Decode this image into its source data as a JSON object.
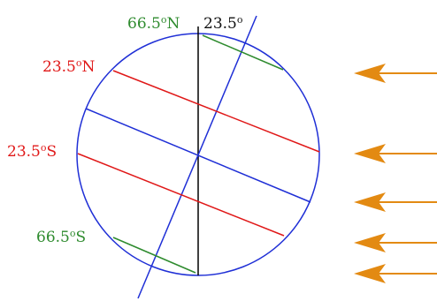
{
  "labels": {
    "arctic": "66.5",
    "arctic_suffix": "N",
    "tilt": "23.5",
    "tropic_cancer": "23.5",
    "tropic_cancer_suffix": "N",
    "tropic_capricorn": "23.5",
    "tropic_capricorn_suffix": "S",
    "antarctic": "66.5",
    "antarctic_suffix": "S"
  },
  "colors": {
    "circle": "#1f2fd6",
    "equator": "#1f2fd6",
    "axis": "#1f2fd6",
    "tropics": "#e01818",
    "polar_circles": "#2e8b2e",
    "vertical": "#000000",
    "sun_rays": "#e38a12",
    "label_polar": "#2e8b2e",
    "label_tropic": "#e01818",
    "label_tilt": "#111111"
  },
  "sun_rays_count": 5
}
